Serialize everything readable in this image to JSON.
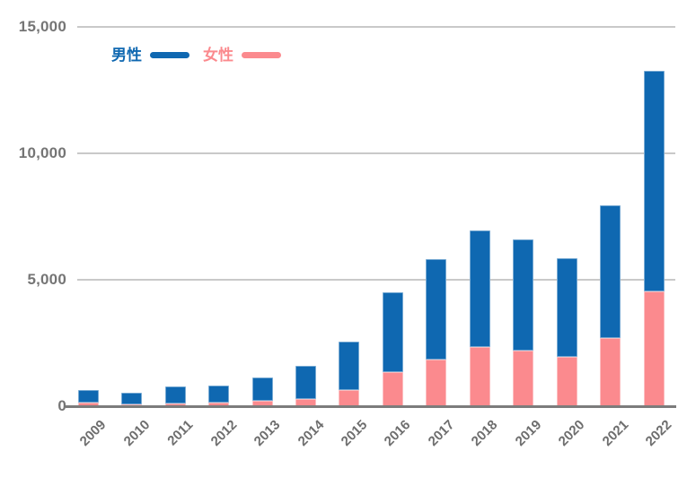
{
  "colors": {
    "male": "#0F68B1",
    "female": "#FB8A8E",
    "grid_line": "#C9C9C9",
    "axis_line": "#7C7C7C",
    "y_tick_label": "#757575",
    "x_tick_label": "#6E6E6E",
    "background": "#FFFFFF"
  },
  "chart_data": {
    "type": "bar",
    "stacked": true,
    "title": "",
    "categories": [
      "2009",
      "2010",
      "2011",
      "2012",
      "2013",
      "2014",
      "2015",
      "2016",
      "2017",
      "2018",
      "2019",
      "2020",
      "2021",
      "2022"
    ],
    "series": [
      {
        "name": "男性",
        "color": "#0F68B1",
        "values": [
          480,
          470,
          670,
          660,
          950,
          1290,
          1900,
          3150,
          3950,
          4600,
          4400,
          3900,
          5250,
          8700
        ]
      },
      {
        "name": "女性",
        "color": "#FB8A8E",
        "values": [
          150,
          60,
          100,
          140,
          200,
          300,
          650,
          1350,
          1850,
          2350,
          2200,
          1950,
          2700,
          4550
        ]
      }
    ],
    "stack_bottom_to_top": [
      1,
      0
    ],
    "totals": [
      630,
      530,
      770,
      800,
      1150,
      1590,
      2550,
      4500,
      5800,
      6950,
      6600,
      5850,
      7950,
      13250
    ],
    "ylim": [
      0,
      15000
    ],
    "yticks": [
      0,
      5000,
      10000,
      15000
    ],
    "ytick_labels": [
      "0",
      "5,000",
      "10,000",
      "15,000"
    ],
    "xlabel": "",
    "ylabel": "",
    "grid": "horizontal",
    "legend_position": "top-left",
    "x_label_rotation_deg": -45
  }
}
